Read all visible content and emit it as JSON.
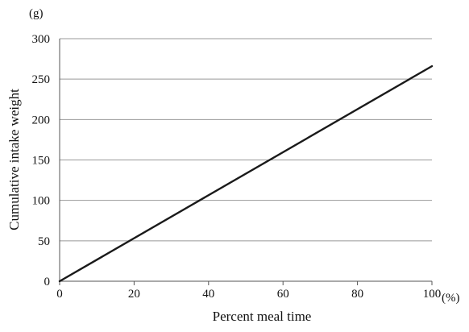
{
  "chart_data": {
    "type": "line",
    "title": "",
    "xlabel": "Percent meal time",
    "ylabel": "Cumulative intake weight",
    "x_unit": "(%)",
    "y_unit": "(g)",
    "xlim": [
      0,
      100
    ],
    "ylim": [
      0,
      300
    ],
    "x_ticks": [
      0,
      20,
      40,
      60,
      80,
      100
    ],
    "y_ticks": [
      0,
      50,
      100,
      150,
      200,
      250,
      300
    ],
    "grid": "horizontal",
    "legend": "none",
    "series": [
      {
        "x": [
          0,
          100
        ],
        "y": [
          0,
          266
        ],
        "color": "#1a1a1a"
      }
    ]
  }
}
